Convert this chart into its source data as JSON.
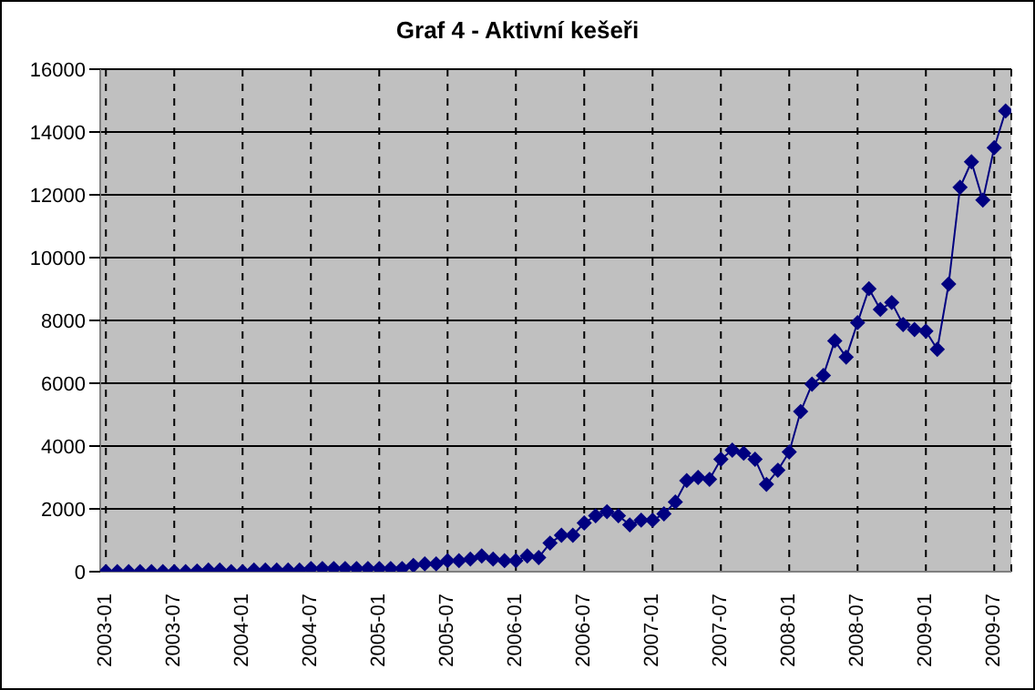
{
  "chart_data": {
    "type": "line",
    "title": "Graf 4 - Aktivní kešeři",
    "categories": [
      "2003-01",
      null,
      null,
      null,
      null,
      null,
      "2003-07",
      null,
      null,
      null,
      null,
      null,
      "2004-01",
      null,
      null,
      null,
      null,
      null,
      "2004-07",
      null,
      null,
      null,
      null,
      null,
      "2005-01",
      null,
      null,
      null,
      null,
      null,
      "2005-07",
      null,
      null,
      null,
      null,
      null,
      "2006-01",
      null,
      null,
      null,
      null,
      null,
      "2006-07",
      null,
      null,
      null,
      null,
      null,
      "2007-01",
      null,
      null,
      null,
      null,
      null,
      "2007-07",
      null,
      null,
      null,
      null,
      null,
      "2008-01",
      null,
      null,
      null,
      null,
      null,
      "2008-07",
      null,
      null,
      null,
      null,
      null,
      "2009-01",
      null,
      null,
      null,
      null,
      null,
      "2009-07",
      null
    ],
    "series": [
      {
        "color": "#000080",
        "values": [
          0,
          0,
          0,
          0,
          0,
          0,
          0,
          0,
          20,
          50,
          50,
          0,
          0,
          50,
          50,
          50,
          50,
          50,
          100,
          100,
          100,
          100,
          100,
          100,
          100,
          100,
          100,
          200,
          250,
          250,
          350,
          350,
          400,
          500,
          400,
          350,
          350,
          500,
          450,
          910,
          1160,
          1160,
          1550,
          1780,
          1910,
          1780,
          1490,
          1640,
          1640,
          1840,
          2220,
          2900,
          3000,
          2940,
          3580,
          3870,
          3770,
          3580,
          2780,
          3230,
          3810,
          5100,
          5970,
          6250,
          7350,
          6830,
          7930,
          9010,
          8350,
          8570,
          7870,
          7710,
          7660,
          7080,
          9160,
          12240,
          13050,
          11830,
          13500,
          14670
        ]
      }
    ],
    "ylim": [
      0,
      16000
    ],
    "yticks": [
      0,
      2000,
      4000,
      6000,
      8000,
      10000,
      12000,
      14000,
      16000
    ],
    "grid": true,
    "marker": "diamond",
    "line_style": "solid"
  }
}
